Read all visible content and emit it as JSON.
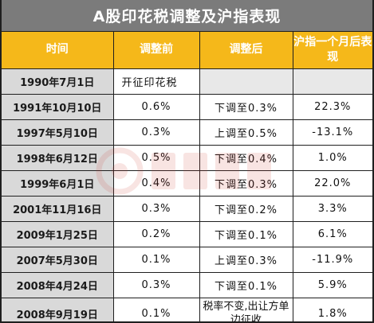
{
  "title": "A股印花税调整及沪指表现",
  "headers": {
    "time": "时间",
    "before": "调整前",
    "after": "调整后",
    "performance": "沪指一个月后表现"
  },
  "rows": [
    {
      "date": "1990年7月1日",
      "before": "开征印花税",
      "after": "",
      "performance": ""
    },
    {
      "date": "1991年10月10日",
      "before": "0.6%",
      "after": "下调至0.3%",
      "performance": "22.3%"
    },
    {
      "date": "1997年5月10日",
      "before": "0.3%",
      "after": "上调至0.5%",
      "performance": "-13.1%"
    },
    {
      "date": "1998年6月12日",
      "before": "0.5%",
      "after": "下调至0.4%",
      "performance": "1.0%"
    },
    {
      "date": "1999年6月1日",
      "before": "0.4%",
      "after": "下调至0.3%",
      "performance": "22.0%"
    },
    {
      "date": "2001年11月16日",
      "before": "0.3%",
      "after": "下调至0.2%",
      "performance": "3.3%"
    },
    {
      "date": "2009年1月25日",
      "before": "0.2%",
      "after": "下调至0.1%",
      "performance": "6.1%"
    },
    {
      "date": "2007年5月30日",
      "before": "0.1%",
      "after": "上调至0.3%",
      "performance": "-11.9%"
    },
    {
      "date": "2008年4月24日",
      "before": "0.3%",
      "after": "下调至0.1%",
      "performance": "5.9%"
    },
    {
      "date": "2008年9月19日",
      "before": "0.1%",
      "after": "税率不变,出让方单边征收",
      "performance": "1.8%"
    }
  ],
  "colors": {
    "title_bg": "#7b7b7b",
    "header_bg": "#f5b81a",
    "date_bg": "#d9d9d9",
    "watermark": "#d0342c"
  }
}
